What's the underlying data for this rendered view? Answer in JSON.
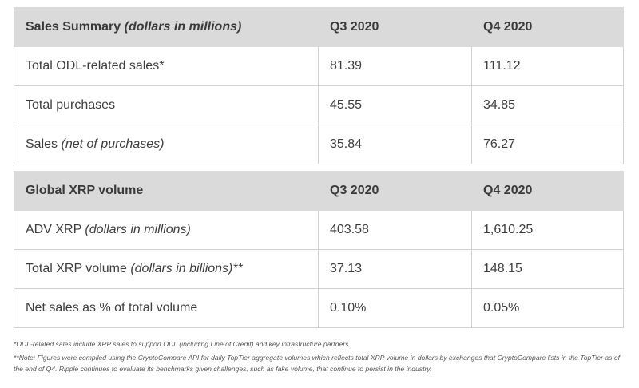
{
  "table1": {
    "header": {
      "label": "Sales Summary",
      "label_italic": "(dollars in millions)",
      "q3": "Q3 2020",
      "q4": "Q4 2020"
    },
    "rows": [
      {
        "label": "Total ODL-related sales*",
        "label_italic": "",
        "q3": "81.39",
        "q4": "111.12"
      },
      {
        "label": "Total purchases",
        "label_italic": "",
        "q3": "45.55",
        "q4": "34.85"
      },
      {
        "label": "Sales",
        "label_italic": "(net of purchases)",
        "q3": "35.84",
        "q4": "76.27"
      }
    ]
  },
  "table2": {
    "header": {
      "label": "Global XRP volume",
      "q3": "Q3 2020",
      "q4": "Q4 2020"
    },
    "rows": [
      {
        "label": "ADV XRP",
        "label_italic": "(dollars in millions)",
        "q3": "403.58",
        "q4": "1,610.25"
      },
      {
        "label": "Total XRP volume",
        "label_italic": "(dollars in billions)**",
        "q3": "37.13",
        "q4": "148.15"
      },
      {
        "label": "Net sales as % of total volume",
        "label_italic": "",
        "q3": "0.10%",
        "q4": "0.05%"
      }
    ]
  },
  "footnotes": {
    "note1": "*ODL-related sales include XRP sales to support ODL (including Line of Credit) and key infrastructure partners.",
    "note2": "**Note: Figures were compiled using the CryptoCompare API for daily TopTier aggregate volumes which reflects total XRP volume in dollars by exchanges that CryptoCompare lists in the TopTier as of the end of Q4. Ripple continues to evaluate its benchmarks given challenges, such as fake volume, that continue to persist in the industry."
  }
}
